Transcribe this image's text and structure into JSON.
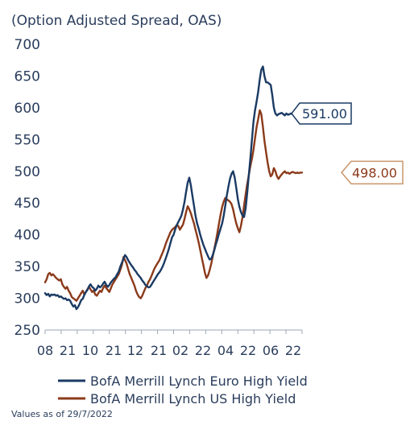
{
  "chart_data": {
    "type": "line",
    "title": "(Option Adjusted Spread, OAS)",
    "ylim": [
      250,
      700
    ],
    "yticks": [
      250,
      300,
      350,
      400,
      450,
      500,
      550,
      600,
      650,
      700
    ],
    "x_tick_labels": [
      "08",
      "21",
      "10",
      "21",
      "12",
      "21",
      "02",
      "22",
      "04",
      "22",
      "06",
      "22"
    ],
    "grid": false,
    "legend_position": "bottom",
    "note": "Values as of 29/7/2022",
    "series": [
      {
        "name": "BofA Merrill Lynch Euro High Yield",
        "color": "#1a3a63",
        "end_label": "591.00",
        "x": [
          0,
          1,
          2,
          3,
          4,
          5,
          6,
          7,
          8,
          9,
          10,
          11,
          12,
          13,
          14,
          15,
          16,
          17,
          18,
          19,
          20,
          21,
          22,
          23,
          24,
          25,
          26,
          27,
          28,
          29,
          30,
          31,
          32,
          33,
          34,
          35,
          36,
          37,
          38,
          39,
          40,
          41,
          42,
          43,
          44,
          45,
          46,
          47,
          48,
          49,
          50,
          51,
          52,
          53,
          54,
          55,
          56,
          57,
          58,
          59,
          60,
          61,
          62,
          63,
          64,
          65,
          66,
          67,
          68,
          69,
          70,
          71,
          72,
          73,
          74,
          75,
          76,
          77,
          78,
          79,
          80,
          81,
          82,
          83,
          84,
          85,
          86,
          87,
          88,
          89,
          90,
          91,
          92,
          93,
          94,
          95,
          96,
          97,
          98,
          99,
          100,
          101,
          102,
          103,
          104,
          105,
          106,
          107,
          108,
          109,
          110,
          111,
          112,
          113,
          114,
          115,
          116,
          117,
          118,
          119,
          120,
          121,
          122,
          123,
          124,
          125,
          126,
          127,
          128,
          129,
          130,
          131,
          132,
          133,
          134,
          135,
          136,
          137,
          138,
          139,
          140,
          141,
          142,
          143,
          144,
          145,
          146,
          147,
          148,
          149,
          150,
          151,
          152,
          153,
          154,
          155,
          156,
          157,
          158,
          159,
          160,
          161,
          162,
          163,
          164
        ],
        "values": [
          308,
          305,
          307,
          303,
          306,
          305,
          306,
          304,
          305,
          302,
          303,
          301,
          299,
          300,
          297,
          298,
          296,
          291,
          287,
          289,
          283,
          286,
          291,
          297,
          299,
          305,
          310,
          313,
          319,
          322,
          318,
          316,
          312,
          315,
          320,
          317,
          319,
          323,
          326,
          321,
          318,
          321,
          325,
          328,
          331,
          333,
          338,
          342,
          350,
          356,
          362,
          368,
          365,
          360,
          356,
          352,
          349,
          345,
          342,
          338,
          335,
          332,
          328,
          325,
          321,
          319,
          317,
          318,
          322,
          326,
          330,
          334,
          338,
          341,
          345,
          350,
          356,
          363,
          370,
          378,
          387,
          396,
          400,
          408,
          415,
          420,
          425,
          430,
          440,
          452,
          468,
          482,
          490,
          478,
          462,
          446,
          430,
          418,
          410,
          400,
          392,
          384,
          378,
          372,
          366,
          361,
          362,
          368,
          376,
          385,
          393,
          402,
          410,
          418,
          430,
          446,
          462,
          476,
          488,
          496,
          500,
          490,
          474,
          456,
          444,
          436,
          430,
          428,
          442,
          466,
          494,
          520,
          550,
          578,
          596,
          610,
          625,
          645,
          660,
          665,
          650,
          640,
          640,
          638,
          636,
          620,
          600,
          591,
          588,
          590,
          591,
          592,
          590,
          588,
          591,
          589,
          590,
          591,
          590,
          591,
          590,
          591,
          590,
          591,
          591
        ]
      },
      {
        "name": "BofA Merrill Lynch US High Yield",
        "color": "#8b3a1a",
        "end_label": "498.00",
        "x": [
          0,
          1,
          2,
          3,
          4,
          5,
          6,
          7,
          8,
          9,
          10,
          11,
          12,
          13,
          14,
          15,
          16,
          17,
          18,
          19,
          20,
          21,
          22,
          23,
          24,
          25,
          26,
          27,
          28,
          29,
          30,
          31,
          32,
          33,
          34,
          35,
          36,
          37,
          38,
          39,
          40,
          41,
          42,
          43,
          44,
          45,
          46,
          47,
          48,
          49,
          50,
          51,
          52,
          53,
          54,
          55,
          56,
          57,
          58,
          59,
          60,
          61,
          62,
          63,
          64,
          65,
          66,
          67,
          68,
          69,
          70,
          71,
          72,
          73,
          74,
          75,
          76,
          77,
          78,
          79,
          80,
          81,
          82,
          83,
          84,
          85,
          86,
          87,
          88,
          89,
          90,
          91,
          92,
          93,
          94,
          95,
          96,
          97,
          98,
          99,
          100,
          101,
          102,
          103,
          104,
          105,
          106,
          107,
          108,
          109,
          110,
          111,
          112,
          113,
          114,
          115,
          116,
          117,
          118,
          119,
          120,
          121,
          122,
          123,
          124,
          125,
          126,
          127,
          128,
          129,
          130,
          131,
          132,
          133,
          134,
          135,
          136,
          137,
          138,
          139,
          140,
          141,
          142,
          143,
          144,
          145,
          146,
          147,
          148,
          149,
          150,
          151,
          152,
          153,
          154,
          155,
          156,
          157,
          158,
          159,
          160,
          161,
          162,
          163,
          164
        ],
        "values": [
          325,
          330,
          338,
          340,
          336,
          338,
          335,
          332,
          330,
          328,
          330,
          322,
          318,
          315,
          318,
          312,
          308,
          302,
          300,
          298,
          296,
          300,
          304,
          308,
          312,
          306,
          310,
          314,
          318,
          314,
          310,
          312,
          306,
          304,
          308,
          312,
          310,
          316,
          320,
          316,
          313,
          310,
          316,
          322,
          326,
          330,
          334,
          338,
          345,
          352,
          365,
          360,
          355,
          346,
          338,
          332,
          326,
          320,
          312,
          306,
          302,
          300,
          304,
          310,
          316,
          320,
          326,
          330,
          336,
          342,
          348,
          352,
          356,
          360,
          366,
          372,
          378,
          386,
          392,
          398,
          404,
          408,
          410,
          412,
          415,
          414,
          408,
          412,
          416,
          425,
          436,
          445,
          440,
          434,
          426,
          418,
          408,
          398,
          388,
          376,
          364,
          352,
          340,
          332,
          336,
          344,
          354,
          366,
          378,
          390,
          404,
          418,
          432,
          444,
          452,
          458,
          456,
          454,
          452,
          448,
          440,
          428,
          418,
          410,
          404,
          414,
          428,
          446,
          464,
          480,
          494,
          508,
          520,
          534,
          552,
          570,
          582,
          596,
          590,
          570,
          548,
          530,
          514,
          500,
          492,
          495,
          505,
          500,
          492,
          488,
          492,
          495,
          498,
          500,
          497,
          498,
          496,
          498,
          499,
          498,
          497,
          498,
          497,
          498,
          498
        ]
      }
    ]
  }
}
